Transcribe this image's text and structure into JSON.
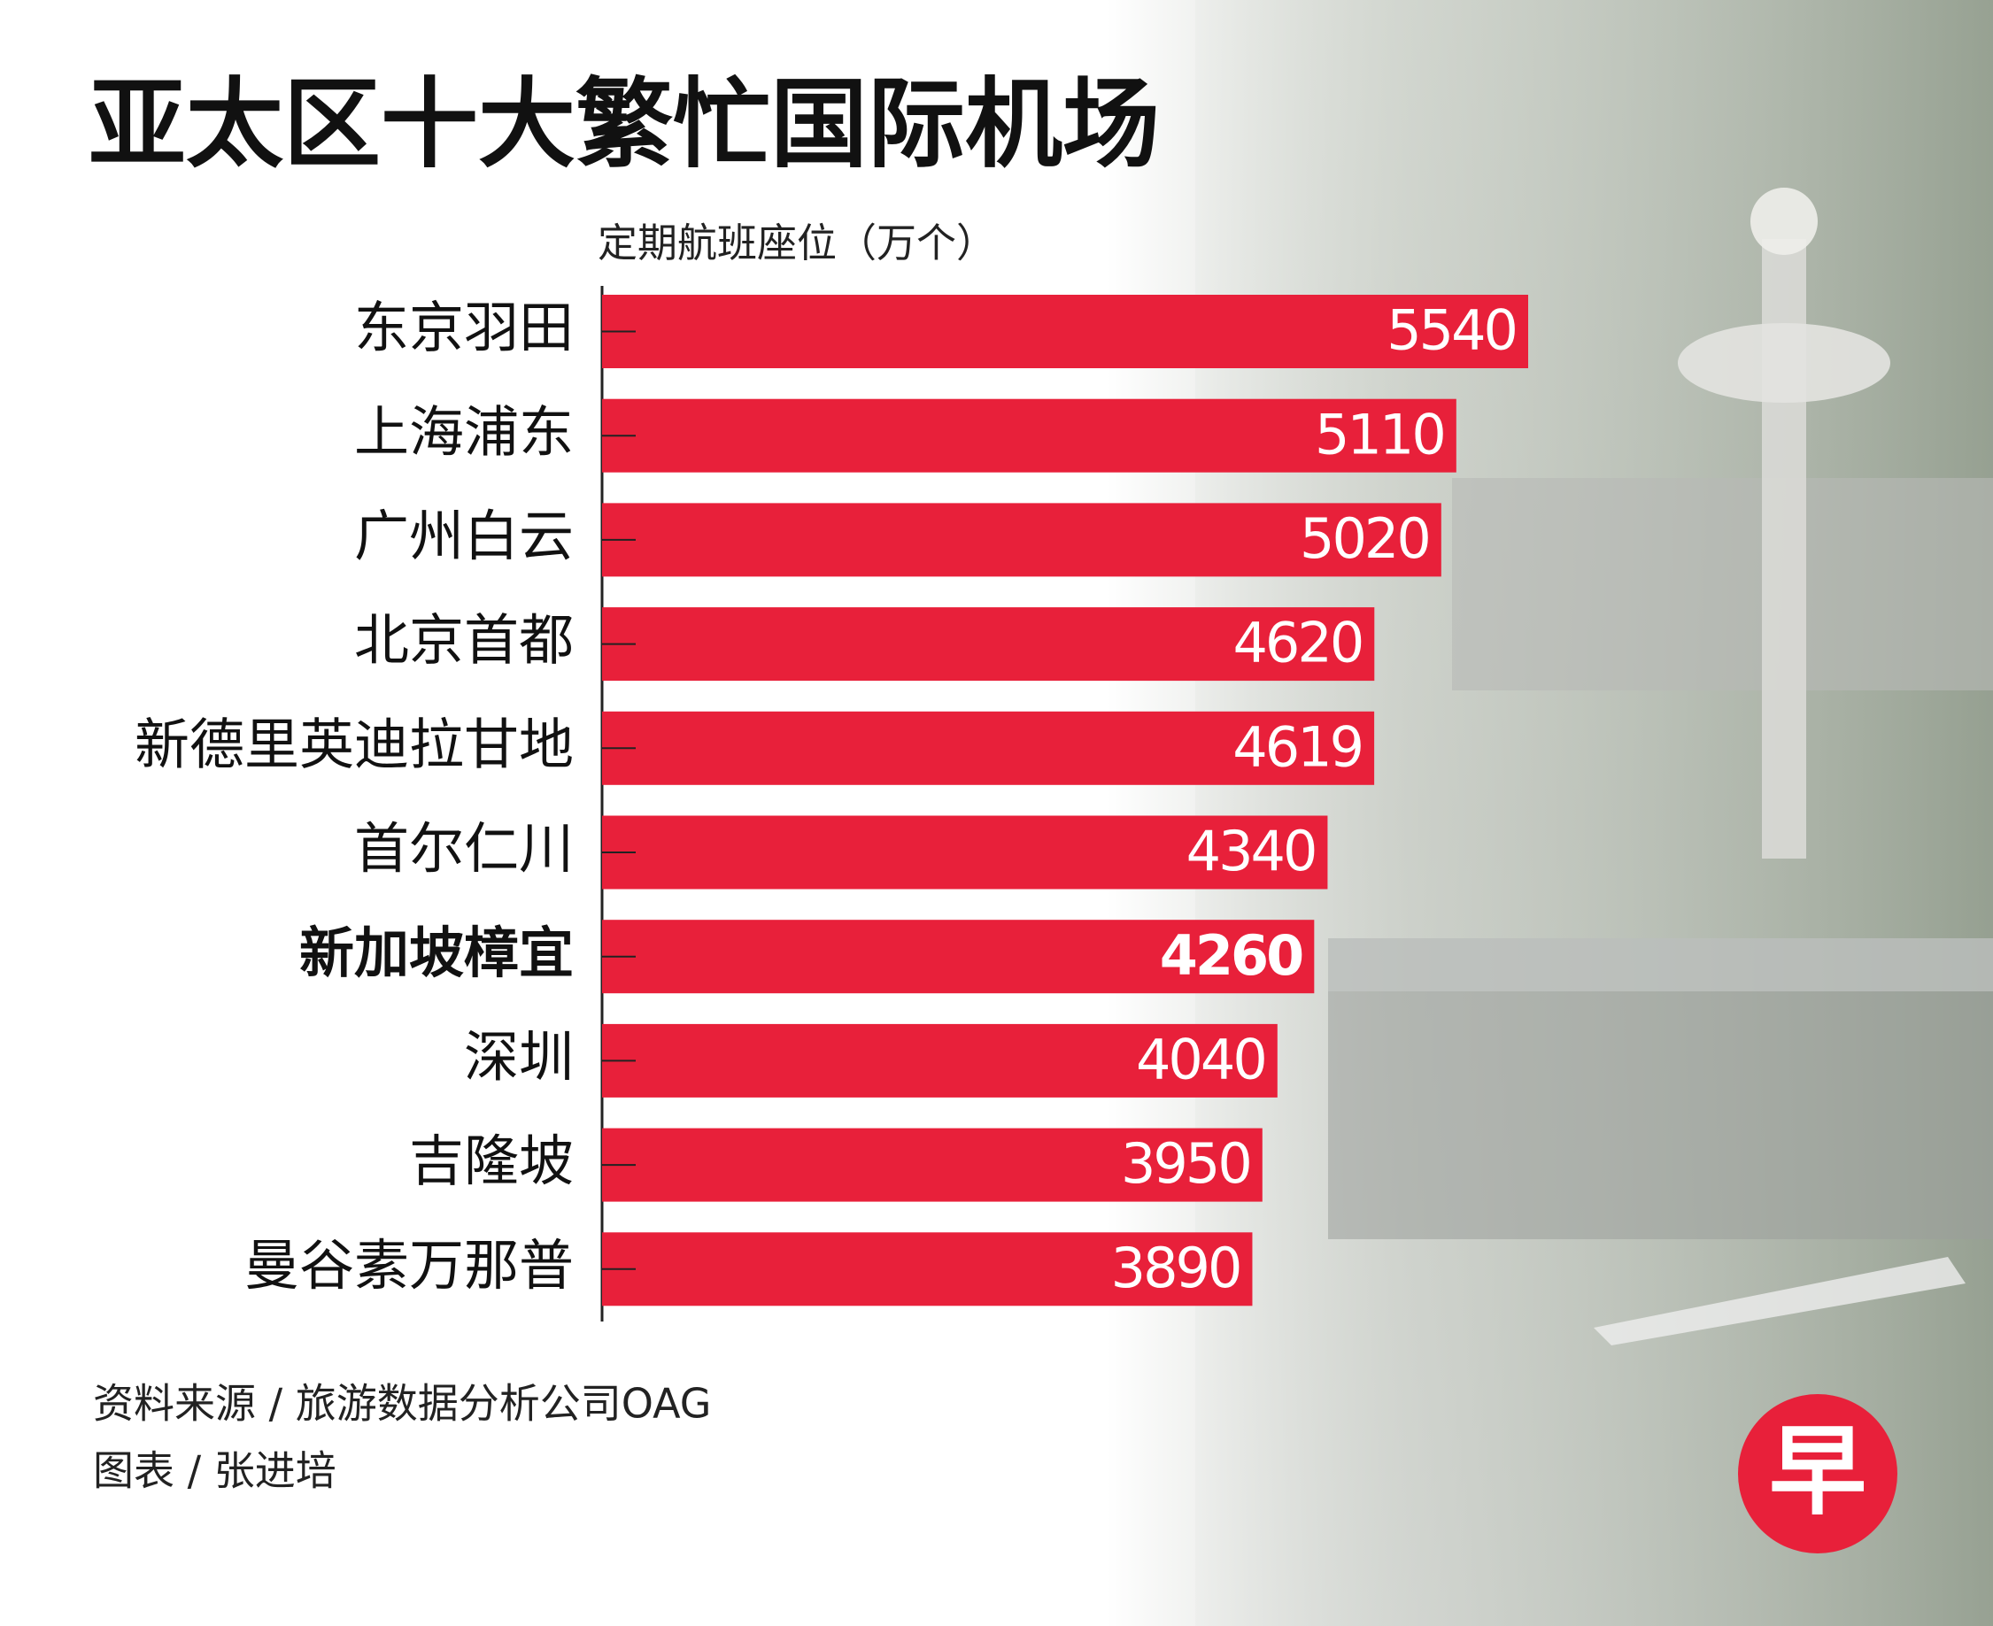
{
  "chart_data": {
    "type": "barh",
    "title": "亚太区十大繁忙国际机场",
    "subtitle": "定期航班座位（万个）",
    "categories": [
      "东京羽田",
      "上海浦东",
      "广州白云",
      "北京首都",
      "新德里英迪拉甘地",
      "首尔仁川",
      "新加坡樟宜",
      "深圳",
      "吉隆坡",
      "曼谷素万那普"
    ],
    "values": [
      5540,
      5110,
      5020,
      4620,
      4619,
      4340,
      4260,
      4040,
      3950,
      3890
    ],
    "color": "#e8203a",
    "highlight": 6,
    "source": "资料来源 / 旅游数据分析公司OAG",
    "credit": "图表 / 张进培",
    "logo": "早"
  }
}
